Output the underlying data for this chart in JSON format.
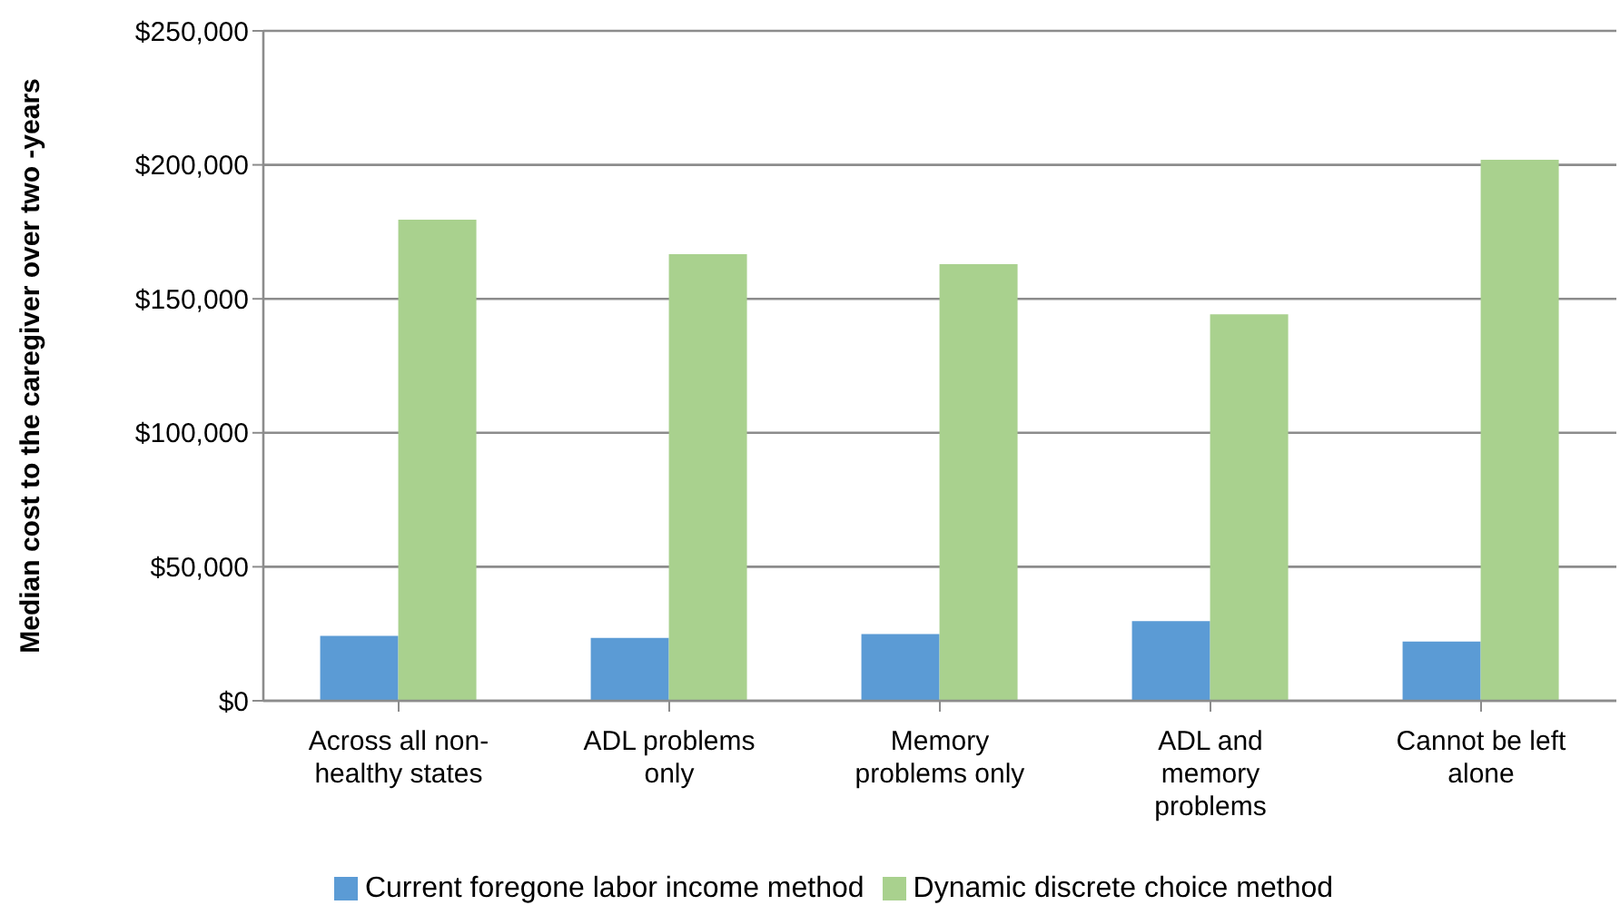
{
  "chart_data": {
    "type": "bar",
    "ylabel": "Median cost to the caregiver over two -years",
    "categories": [
      "Across all non-healthy states",
      "ADL problems only",
      "Memory problems only",
      "ADL and memory problems",
      "Cannot be left alone"
    ],
    "series": [
      {
        "name": "Current foregone labor income method",
        "color": "#5b9bd5",
        "values": [
          24200,
          23500,
          24900,
          29700,
          22100
        ]
      },
      {
        "name": "Dynamic discrete choice method",
        "color": "#a9d18e",
        "values": [
          179500,
          166700,
          162900,
          144200,
          201900
        ]
      }
    ],
    "ylim": [
      0,
      250000
    ],
    "yticks": [
      {
        "value": 0,
        "label": "$0"
      },
      {
        "value": 50000,
        "label": "$50,000"
      },
      {
        "value": 100000,
        "label": "$100,000"
      },
      {
        "value": 150000,
        "label": "$150,000"
      },
      {
        "value": 200000,
        "label": "$200,000"
      },
      {
        "value": 250000,
        "label": "$250,000"
      }
    ],
    "grid": "y",
    "legend": "bottom"
  }
}
